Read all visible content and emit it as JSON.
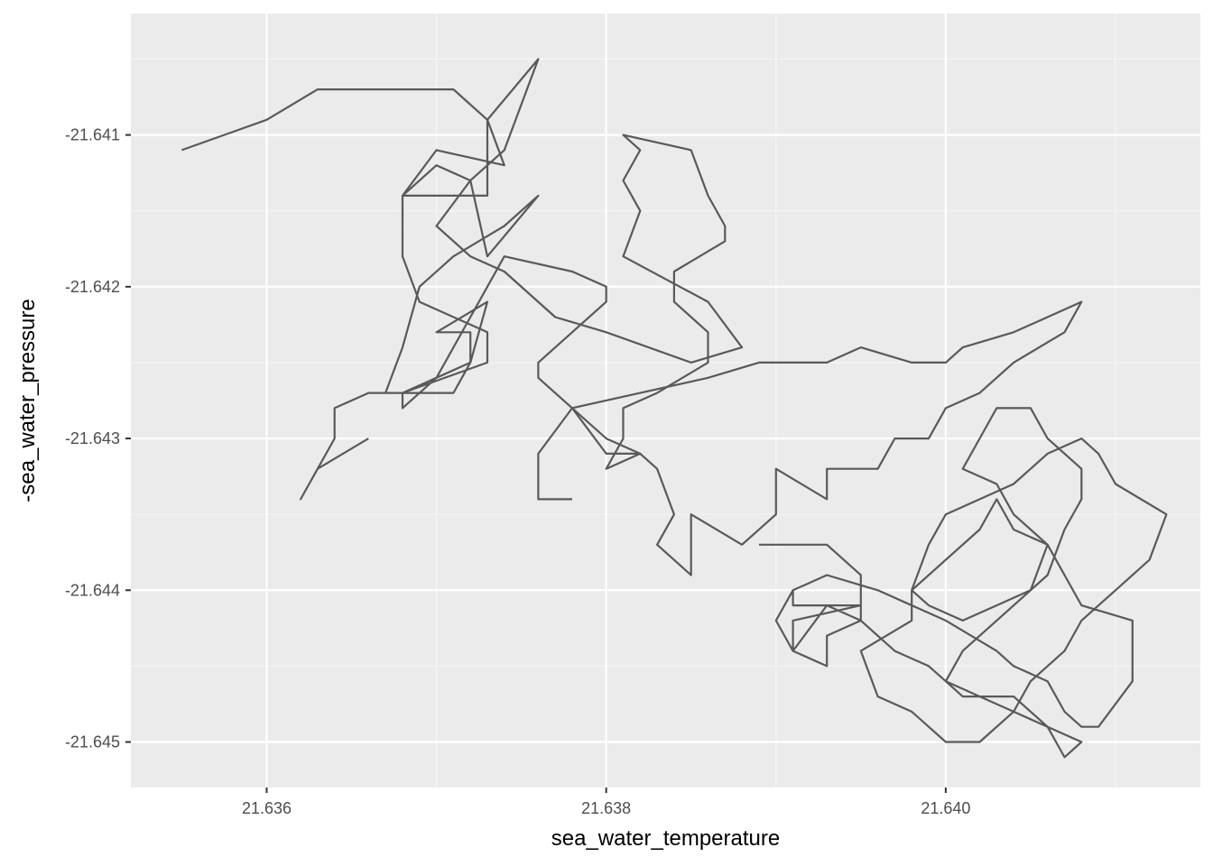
{
  "colors": {
    "panel_background": "#ebebeb",
    "grid_major": "#ffffff",
    "grid_minor": "#f5f5f5",
    "line": "#595959",
    "tick_text": "#4d4d4d",
    "axis_title": "#000000"
  },
  "chart_data": {
    "type": "line",
    "path_style": "geom_path (points connected in data order)",
    "xlabel": "sea_water_temperature",
    "ylabel": "-sea_water_pressure",
    "xlim": [
      21.6352,
      21.6415
    ],
    "ylim": [
      -21.6453,
      -21.6402
    ],
    "x_ticks": [
      21.636,
      21.638,
      21.64
    ],
    "x_tick_labels": [
      "21.636",
      "21.638",
      "21.640"
    ],
    "y_ticks": [
      -21.641,
      -21.642,
      -21.643,
      -21.644,
      -21.645
    ],
    "y_tick_labels": [
      "-21.641",
      "-21.642",
      "-21.643",
      "-21.644",
      "-21.645"
    ],
    "grid": true,
    "legend": "none",
    "series": [
      {
        "x": [
          21.6355,
          21.636,
          21.6363,
          21.6366,
          21.6371,
          21.6373,
          21.6373,
          21.6368,
          21.637,
          21.6372,
          21.6373,
          21.6376,
          21.6374,
          21.6371,
          21.6369,
          21.6368,
          21.6367,
          21.6371,
          21.6372,
          21.6372,
          21.637,
          21.6373,
          21.6372,
          21.6368,
          21.6373,
          21.6373,
          21.6369,
          21.6368,
          21.6368,
          21.637,
          21.6374,
          21.6373,
          21.6376,
          21.6374,
          21.6372,
          21.637,
          21.6372,
          21.6374,
          21.6377,
          21.638,
          21.6385,
          21.6388,
          21.6386,
          21.6381,
          21.6382,
          21.6381,
          21.6382,
          21.6381,
          21.6385,
          21.6386,
          21.6387,
          21.6387,
          21.6384,
          21.6384,
          21.6386,
          21.6386,
          21.6383,
          21.6381,
          21.6381,
          21.638,
          21.6382,
          21.638,
          21.6378,
          21.6376,
          21.6376,
          21.6378,
          21.638,
          21.638,
          21.6378,
          21.6374,
          21.6373,
          21.6372,
          21.637,
          21.6368,
          21.6368,
          21.6368,
          21.6366,
          21.6364,
          21.6364,
          21.6363,
          21.6362,
          21.6363,
          21.6366,
          21.6366
        ],
        "y": [
          -21.6411,
          -21.6409,
          -21.6407,
          -21.6407,
          -21.6407,
          -21.6409,
          -21.6414,
          -21.6414,
          -21.6412,
          -21.6413,
          -21.6418,
          -21.6414,
          -21.6416,
          -21.6418,
          -21.642,
          -21.6424,
          -21.6427,
          -21.6427,
          -21.6425,
          -21.6423,
          -21.6423,
          -21.6421,
          -21.6425,
          -21.6427,
          -21.6425,
          -21.6423,
          -21.6421,
          -21.6418,
          -21.6414,
          -21.6411,
          -21.6412,
          -21.6409,
          -21.6405,
          -21.6411,
          -21.6413,
          -21.6416,
          -21.6418,
          -21.6419,
          -21.6422,
          -21.6423,
          -21.6425,
          -21.6424,
          -21.6421,
          -21.6418,
          -21.6415,
          -21.6413,
          -21.6411,
          -21.641,
          -21.6411,
          -21.6414,
          -21.6416,
          -21.6417,
          -21.6419,
          -21.6421,
          -21.6423,
          -21.6425,
          -21.6427,
          -21.6428,
          -21.643,
          -21.6432,
          -21.6431,
          -21.643,
          -21.6428,
          -21.6426,
          -21.6425,
          -21.6423,
          -21.6421,
          -21.642,
          -21.6419,
          -21.6418,
          -21.642,
          -21.6422,
          -21.6426,
          -21.6428,
          -21.6428,
          -21.6427,
          -21.6427,
          -21.6428,
          -21.643,
          -21.6432,
          -21.6434,
          -21.6432,
          -21.643,
          -21.643
        ]
      },
      {
        "x": [
          21.6378,
          21.6382,
          21.6386,
          21.6389,
          21.6393,
          21.6395,
          21.6398,
          21.64,
          21.6401,
          21.6404,
          21.6406,
          21.6408,
          21.6407,
          21.6404,
          21.6402,
          21.64,
          21.6399,
          21.6397,
          21.6396,
          21.6396,
          21.6393,
          21.6393,
          21.639,
          21.639,
          21.6388,
          21.6385,
          21.6385,
          21.6383,
          21.6384,
          21.6383,
          21.6382,
          21.638,
          21.6378,
          21.6376,
          21.6376,
          21.6378
        ],
        "y": [
          -21.6428,
          -21.6427,
          -21.6426,
          -21.6425,
          -21.6425,
          -21.6424,
          -21.6425,
          -21.6425,
          -21.6424,
          -21.6423,
          -21.6422,
          -21.6421,
          -21.6423,
          -21.6425,
          -21.6427,
          -21.6428,
          -21.643,
          -21.643,
          -21.6432,
          -21.6432,
          -21.6432,
          -21.6434,
          -21.6432,
          -21.6435,
          -21.6437,
          -21.6435,
          -21.6439,
          -21.6437,
          -21.6435,
          -21.6432,
          -21.6431,
          -21.6431,
          -21.6428,
          -21.6431,
          -21.6434,
          -21.6434
        ]
      },
      {
        "x": [
          21.6389,
          21.6391,
          21.6393,
          21.6395,
          21.6395,
          21.6391,
          21.6391,
          21.6393,
          21.6393,
          21.6395,
          21.6395,
          21.6393,
          21.6391,
          21.639,
          21.6391,
          21.6393,
          21.6396,
          21.64,
          21.6403,
          21.6404,
          21.6406,
          21.6407,
          21.6408,
          21.6409,
          21.6411,
          21.6411,
          21.6408,
          21.6407,
          21.6406,
          21.6404,
          21.6403,
          21.6402,
          21.64,
          21.6398,
          21.6398,
          21.6395,
          21.6396,
          21.6398,
          21.64,
          21.6402,
          21.6404,
          21.6405,
          21.6406,
          21.6407,
          21.6408,
          21.641,
          21.6412,
          21.6413,
          21.641,
          21.6409,
          21.6408,
          21.6406,
          21.6404,
          21.6402,
          21.64,
          21.6399,
          21.6398,
          21.6399,
          21.6401,
          21.6403,
          21.6405,
          21.6406,
          21.6407,
          21.6408,
          21.6408,
          21.6406,
          21.6405,
          21.6403,
          21.6402,
          21.6401,
          21.6403,
          21.6404,
          21.6406,
          21.6405,
          21.6403,
          21.6401,
          21.64,
          21.6401,
          21.6404,
          21.6405,
          21.6406,
          21.6407,
          21.6408,
          21.6408,
          21.6406,
          21.6404,
          21.6402,
          21.64,
          21.6399,
          21.6397,
          21.6396,
          21.6395,
          21.6393,
          21.6391,
          21.6391
        ],
        "y": [
          -21.6437,
          -21.6437,
          -21.6437,
          -21.6439,
          -21.6441,
          -21.6442,
          -21.6444,
          -21.6445,
          -21.6443,
          -21.6442,
          -21.6441,
          -21.6441,
          -21.6444,
          -21.6442,
          -21.644,
          -21.6439,
          -21.644,
          -21.6442,
          -21.6444,
          -21.6445,
          -21.6446,
          -21.6448,
          -21.6449,
          -21.6449,
          -21.6446,
          -21.6442,
          -21.6441,
          -21.6439,
          -21.6437,
          -21.6436,
          -21.6434,
          -21.6436,
          -21.6438,
          -21.644,
          -21.6442,
          -21.6444,
          -21.6447,
          -21.6448,
          -21.645,
          -21.645,
          -21.6448,
          -21.6446,
          -21.6445,
          -21.6444,
          -21.6442,
          -21.644,
          -21.6438,
          -21.6435,
          -21.6433,
          -21.6431,
          -21.643,
          -21.6431,
          -21.6433,
          -21.6434,
          -21.6435,
          -21.6437,
          -21.644,
          -21.6441,
          -21.6442,
          -21.6441,
          -21.644,
          -21.6439,
          -21.6436,
          -21.6434,
          -21.6432,
          -21.643,
          -21.6428,
          -21.6428,
          -21.643,
          -21.6432,
          -21.6433,
          -21.6435,
          -21.6437,
          -21.644,
          -21.6442,
          -21.6444,
          -21.6446,
          -21.6447,
          -21.6447,
          -21.6448,
          -21.6449,
          -21.6451,
          -21.645,
          -21.645,
          -21.6449,
          -21.6448,
          -21.6447,
          -21.6446,
          -21.6445,
          -21.6444,
          -21.6443,
          -21.6442,
          -21.6441,
          -21.6441,
          -21.644
        ]
      }
    ]
  }
}
